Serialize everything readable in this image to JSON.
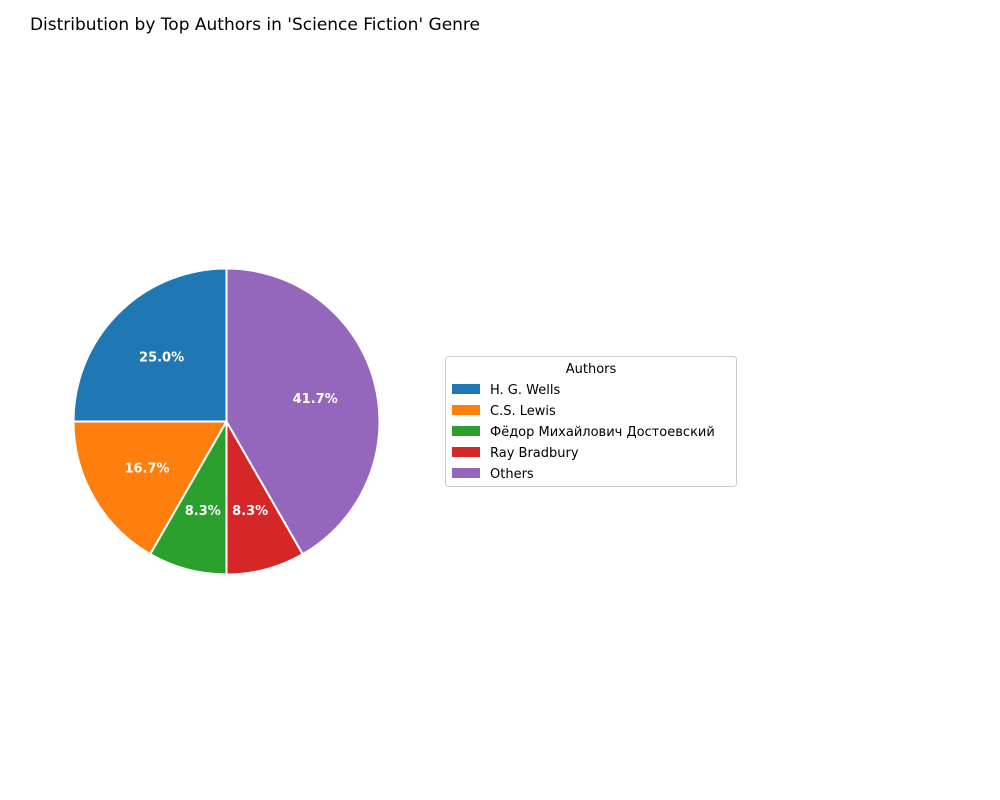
{
  "chart_data": {
    "type": "pie",
    "title": "Distribution by Top Authors in 'Science Fiction' Genre",
    "legend": {
      "title": "Authors",
      "placement": "right"
    },
    "slices": [
      {
        "label": "H. G. Wells",
        "value": 25.0,
        "pct_label": "25.0%",
        "color": "#1f77b4"
      },
      {
        "label": "C.S. Lewis",
        "value": 16.7,
        "pct_label": "16.7%",
        "color": "#ff7f0e"
      },
      {
        "label": "Фёдор Михайлович Достоевский",
        "value": 8.3,
        "pct_label": "8.3%",
        "color": "#2ca02c"
      },
      {
        "label": "Ray Bradbury",
        "value": 8.3,
        "pct_label": "8.3%",
        "color": "#d62728"
      },
      {
        "label": "Others",
        "value": 41.7,
        "pct_label": "41.7%",
        "color": "#9467bd"
      }
    ]
  }
}
